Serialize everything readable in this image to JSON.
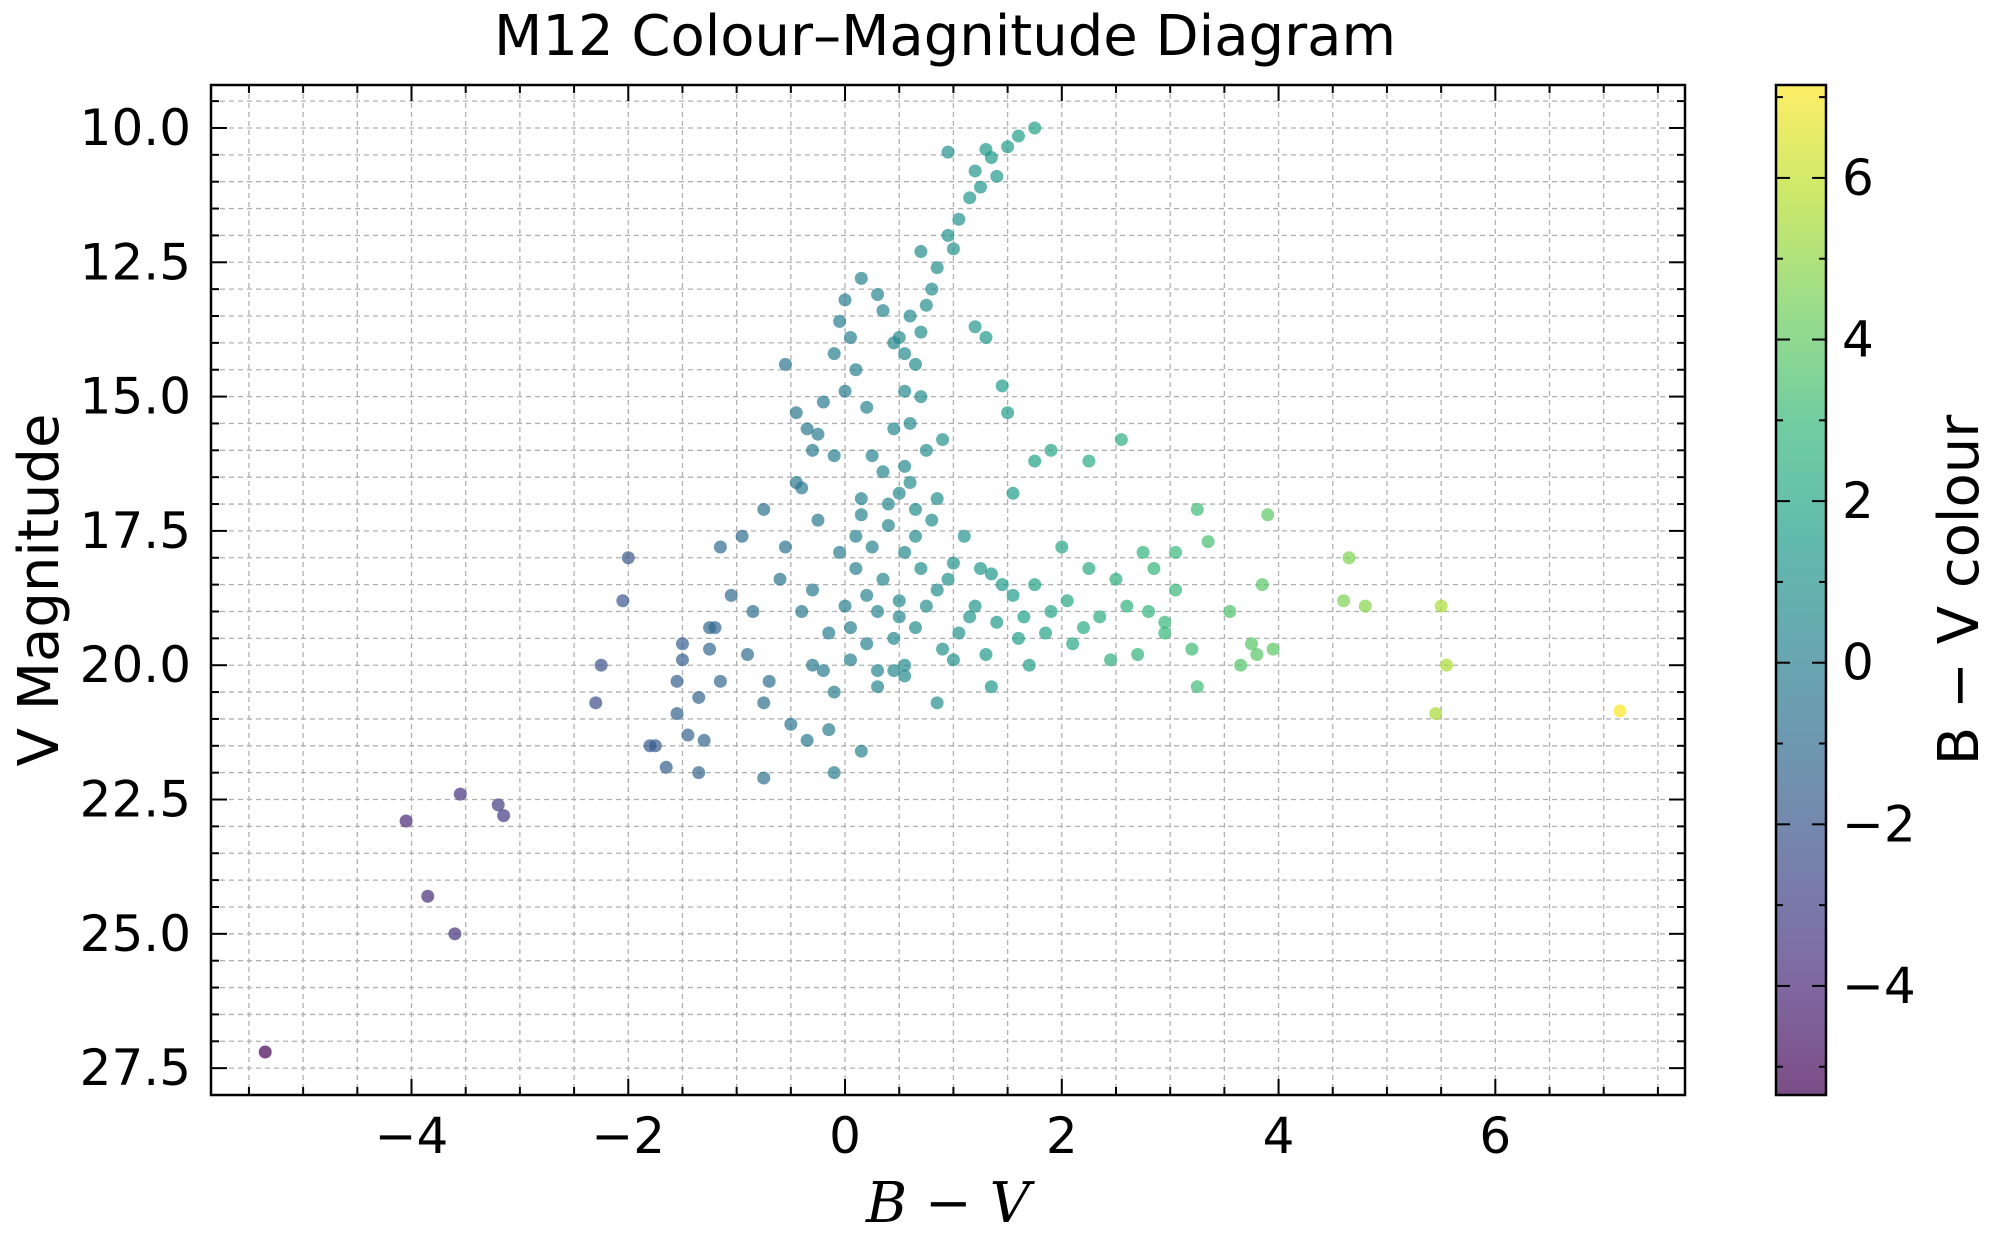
{
  "chart_data": {
    "type": "scatter",
    "title": "M12 Colour–Magnitude Diagram",
    "xlabel": "B − V",
    "ylabel": "V Magnitude",
    "colorbar_label": "B − V colour",
    "xlim": [
      -5.85,
      7.75
    ],
    "ylim": [
      28.0,
      9.2
    ],
    "y_inverted": true,
    "grid": true,
    "grid_style": "dashed",
    "minor_ticks": true,
    "x_ticks": [
      -4,
      -2,
      0,
      2,
      4,
      6
    ],
    "x_tick_labels": [
      "−4",
      "−2",
      "0",
      "2",
      "4",
      "6"
    ],
    "y_ticks": [
      10.0,
      12.5,
      15.0,
      17.5,
      20.0,
      22.5,
      25.0,
      27.5
    ],
    "y_tick_labels": [
      "10.0",
      "12.5",
      "15.0",
      "17.5",
      "20.0",
      "22.5",
      "25.0",
      "27.5"
    ],
    "colorbar": {
      "colormap": "viridis",
      "alpha": 0.7,
      "range": [
        -5.35,
        7.15
      ],
      "ticks": [
        -4,
        -2,
        0,
        2,
        4,
        6
      ],
      "tick_labels": [
        "−4",
        "−2",
        "0",
        "2",
        "4",
        "6"
      ],
      "colors": [
        "#440154",
        "#482878",
        "#3e4989",
        "#31688e",
        "#26828e",
        "#1f9e89",
        "#35b779",
        "#6ece58",
        "#b5de2b",
        "#fde725"
      ]
    },
    "point_color_value": "B − V",
    "points": [
      [
        1.75,
        10.0
      ],
      [
        1.6,
        10.15
      ],
      [
        1.5,
        10.35
      ],
      [
        1.35,
        10.55
      ],
      [
        1.3,
        10.4
      ],
      [
        1.4,
        10.9
      ],
      [
        1.25,
        11.1
      ],
      [
        1.15,
        11.3
      ],
      [
        1.05,
        11.7
      ],
      [
        0.95,
        12.0
      ],
      [
        1.0,
        12.25
      ],
      [
        0.85,
        12.6
      ],
      [
        0.8,
        13.0
      ],
      [
        0.75,
        13.3
      ],
      [
        0.7,
        13.8
      ],
      [
        0.65,
        14.4
      ],
      [
        0.55,
        14.9
      ],
      [
        0.95,
        10.45
      ],
      [
        1.2,
        10.8
      ],
      [
        0.7,
        12.3
      ],
      [
        0.15,
        12.8
      ],
      [
        0.0,
        13.2
      ],
      [
        -0.05,
        13.6
      ],
      [
        0.05,
        13.9
      ],
      [
        -0.1,
        14.2
      ],
      [
        0.1,
        14.5
      ],
      [
        0.0,
        14.9
      ],
      [
        -0.2,
        15.1
      ],
      [
        0.35,
        13.4
      ],
      [
        0.45,
        14.0
      ],
      [
        -0.35,
        15.6
      ],
      [
        -0.55,
        14.4
      ],
      [
        -0.45,
        15.3
      ],
      [
        -0.25,
        15.7
      ],
      [
        -0.1,
        16.1
      ],
      [
        0.2,
        15.2
      ],
      [
        0.6,
        15.5
      ],
      [
        0.75,
        16.0
      ],
      [
        0.55,
        16.3
      ],
      [
        0.9,
        15.8
      ],
      [
        0.35,
        16.4
      ],
      [
        0.5,
        16.8
      ],
      [
        0.65,
        17.1
      ],
      [
        0.4,
        17.4
      ],
      [
        0.8,
        17.3
      ],
      [
        0.25,
        17.8
      ],
      [
        0.55,
        17.9
      ],
      [
        0.1,
        17.6
      ],
      [
        0.7,
        18.2
      ],
      [
        0.35,
        18.4
      ],
      [
        1.0,
        18.1
      ],
      [
        0.85,
        18.6
      ],
      [
        0.5,
        18.8
      ],
      [
        1.2,
        18.9
      ],
      [
        0.3,
        19.0
      ],
      [
        0.65,
        19.3
      ],
      [
        1.05,
        19.4
      ],
      [
        1.4,
        19.2
      ],
      [
        0.2,
        19.6
      ],
      [
        0.9,
        19.7
      ],
      [
        1.3,
        19.8
      ],
      [
        0.55,
        20.0
      ],
      [
        1.6,
        19.5
      ],
      [
        0.0,
        18.9
      ],
      [
        -0.15,
        19.4
      ],
      [
        -0.3,
        18.6
      ],
      [
        -0.05,
        17.9
      ],
      [
        -0.25,
        17.3
      ],
      [
        0.15,
        16.9
      ],
      [
        -0.4,
        16.7
      ],
      [
        1.1,
        17.6
      ],
      [
        1.35,
        18.3
      ],
      [
        1.55,
        18.7
      ],
      [
        1.75,
        18.5
      ],
      [
        1.9,
        19.0
      ],
      [
        2.05,
        18.8
      ],
      [
        2.2,
        19.3
      ],
      [
        2.35,
        19.1
      ],
      [
        2.1,
        19.6
      ],
      [
        1.85,
        19.4
      ],
      [
        2.5,
        18.4
      ],
      [
        2.6,
        18.9
      ],
      [
        2.8,
        19.0
      ],
      [
        2.95,
        19.4
      ],
      [
        2.7,
        19.8
      ],
      [
        2.45,
        19.9
      ],
      [
        2.25,
        18.2
      ],
      [
        2.0,
        17.8
      ],
      [
        1.55,
        16.8
      ],
      [
        1.75,
        16.2
      ],
      [
        1.9,
        16.0
      ],
      [
        2.25,
        16.2
      ],
      [
        2.55,
        15.8
      ],
      [
        1.2,
        13.7
      ],
      [
        1.3,
        13.9
      ],
      [
        1.45,
        14.8
      ],
      [
        1.5,
        15.3
      ],
      [
        2.75,
        17.9
      ],
      [
        2.85,
        18.2
      ],
      [
        3.05,
        17.9
      ],
      [
        3.25,
        17.1
      ],
      [
        3.35,
        17.7
      ],
      [
        3.05,
        18.6
      ],
      [
        2.95,
        19.2
      ],
      [
        3.2,
        19.7
      ],
      [
        3.65,
        20.0
      ],
      [
        3.8,
        19.8
      ],
      [
        3.9,
        17.2
      ],
      [
        3.85,
        18.5
      ],
      [
        3.75,
        19.6
      ],
      [
        3.95,
        19.7
      ],
      [
        3.55,
        19.0
      ],
      [
        3.25,
        20.4
      ],
      [
        4.65,
        18.0
      ],
      [
        4.6,
        18.8
      ],
      [
        4.8,
        18.9
      ],
      [
        5.5,
        18.9
      ],
      [
        5.55,
        20.0
      ],
      [
        5.45,
        20.9
      ],
      [
        7.15,
        20.85
      ],
      [
        -0.3,
        16.0
      ],
      [
        -0.45,
        16.6
      ],
      [
        -0.75,
        17.1
      ],
      [
        -0.95,
        17.6
      ],
      [
        -1.15,
        17.8
      ],
      [
        -0.55,
        17.8
      ],
      [
        -0.6,
        18.4
      ],
      [
        -0.85,
        19.0
      ],
      [
        -0.4,
        19.0
      ],
      [
        -1.05,
        18.7
      ],
      [
        -1.25,
        19.3
      ],
      [
        -1.5,
        19.6
      ],
      [
        -1.25,
        19.7
      ],
      [
        -1.15,
        20.3
      ],
      [
        -1.35,
        20.6
      ],
      [
        -1.55,
        20.9
      ],
      [
        -1.75,
        21.5
      ],
      [
        -1.65,
        21.9
      ],
      [
        -1.3,
        21.4
      ],
      [
        -1.35,
        22.0
      ],
      [
        -0.9,
        19.8
      ],
      [
        -0.7,
        20.3
      ],
      [
        -0.75,
        20.7
      ],
      [
        -0.5,
        21.1
      ],
      [
        -0.75,
        22.1
      ],
      [
        -0.35,
        21.4
      ],
      [
        -0.15,
        21.2
      ],
      [
        -0.1,
        22.0
      ],
      [
        0.15,
        21.6
      ],
      [
        0.3,
        20.4
      ],
      [
        -0.2,
        20.1
      ],
      [
        0.05,
        19.9
      ],
      [
        -0.1,
        20.5
      ],
      [
        0.45,
        20.1
      ],
      [
        0.85,
        20.7
      ],
      [
        0.55,
        20.2
      ],
      [
        1.35,
        20.4
      ],
      [
        1.7,
        20.0
      ],
      [
        -2.0,
        18.0
      ],
      [
        -2.05,
        18.8
      ],
      [
        -2.25,
        20.0
      ],
      [
        -2.3,
        20.7
      ],
      [
        -1.55,
        20.3
      ],
      [
        -1.45,
        21.3
      ],
      [
        -1.8,
        21.5
      ],
      [
        -1.5,
        19.9
      ],
      [
        -1.2,
        19.3
      ],
      [
        -3.55,
        22.4
      ],
      [
        -4.05,
        22.9
      ],
      [
        -3.2,
        22.6
      ],
      [
        -3.15,
        22.8
      ],
      [
        -3.85,
        24.3
      ],
      [
        -3.6,
        25.0
      ],
      [
        -5.35,
        27.2
      ],
      [
        0.45,
        15.6
      ],
      [
        0.7,
        15.0
      ],
      [
        0.6,
        16.6
      ],
      [
        0.25,
        16.1
      ],
      [
        0.85,
        16.9
      ],
      [
        0.1,
        18.2
      ],
      [
        0.45,
        19.5
      ],
      [
        0.75,
        18.9
      ],
      [
        1.15,
        19.1
      ],
      [
        0.4,
        17.0
      ],
      [
        0.65,
        17.6
      ],
      [
        0.2,
        18.7
      ],
      [
        0.95,
        18.4
      ],
      [
        0.5,
        19.1
      ],
      [
        1.0,
        19.9
      ],
      [
        0.05,
        19.3
      ],
      [
        1.45,
        18.5
      ],
      [
        1.65,
        19.1
      ],
      [
        1.25,
        18.2
      ],
      [
        0.3,
        20.1
      ],
      [
        -0.3,
        20.0
      ],
      [
        0.15,
        17.2
      ],
      [
        0.55,
        14.2
      ],
      [
        0.6,
        13.5
      ],
      [
        0.5,
        13.9
      ],
      [
        0.3,
        13.1
      ]
    ]
  }
}
